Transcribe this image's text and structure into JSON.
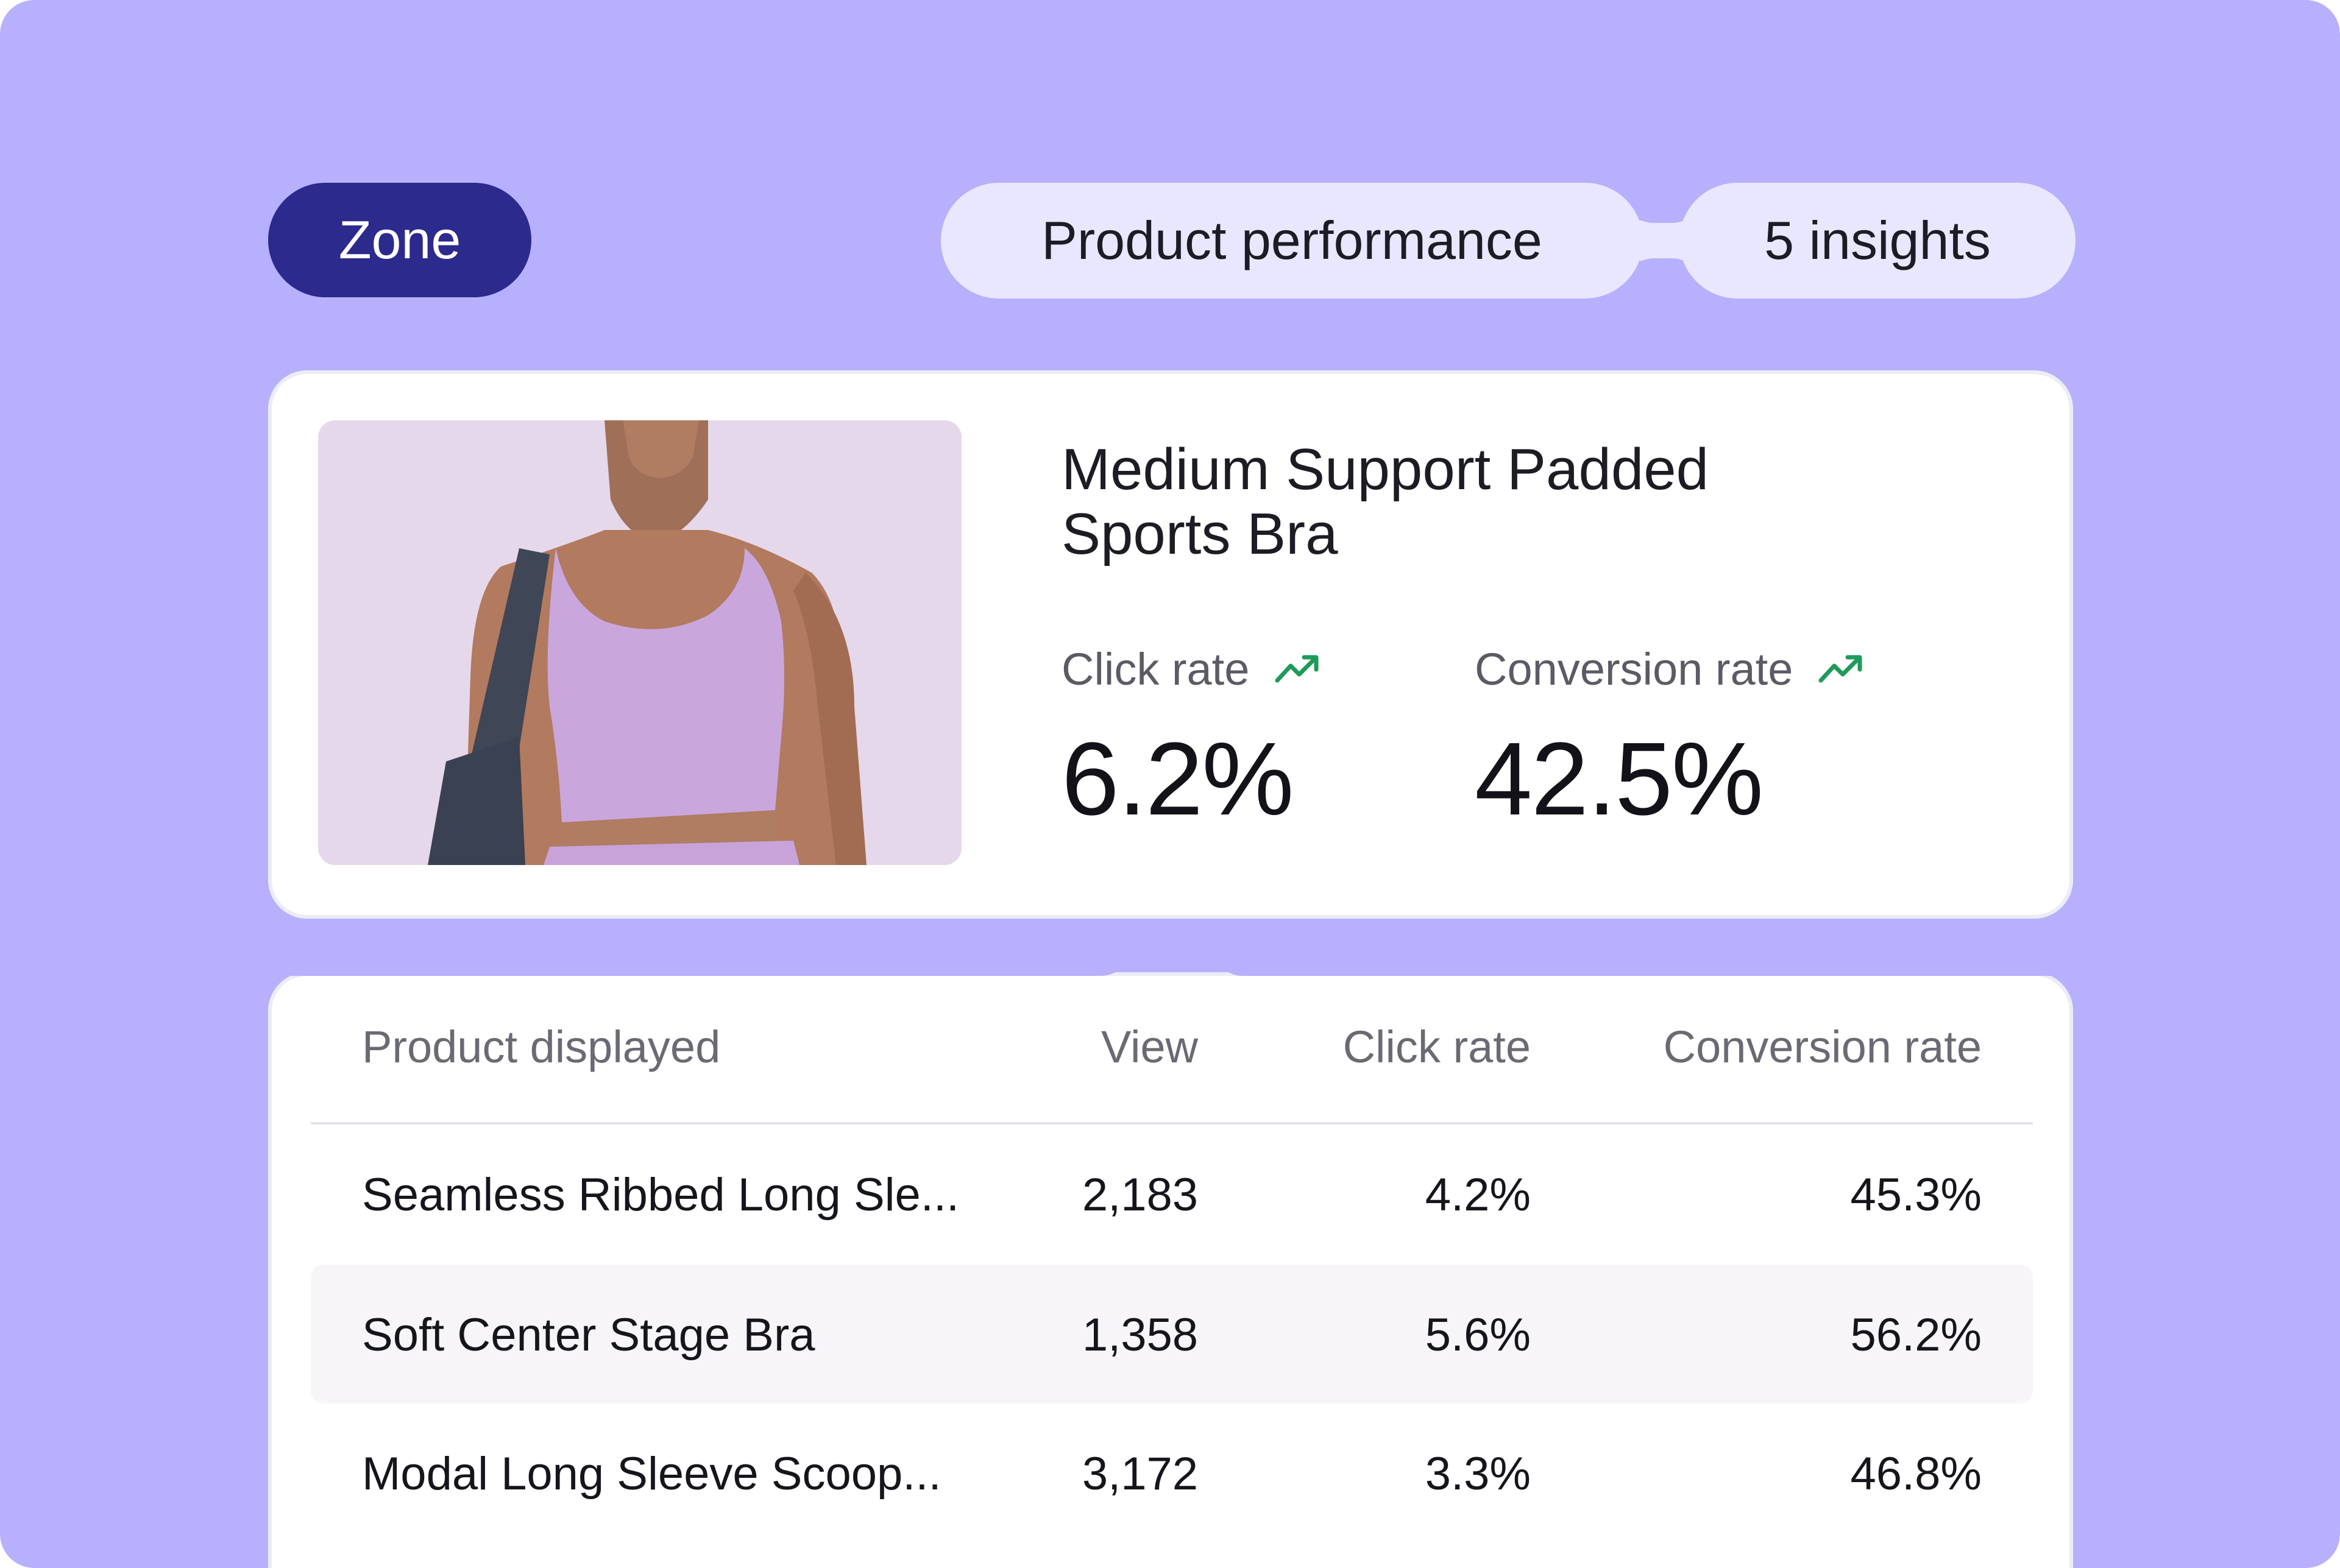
{
  "header": {
    "zone_label": "Zone",
    "section_label": "Product performance",
    "insights_label": "5 insights"
  },
  "product": {
    "title": "Medium Support Padded Sports Bra",
    "image": "woman-in-lavender-sports-top-photo",
    "metrics": [
      {
        "label": "Click rate",
        "value": "6.2%",
        "trend": "up",
        "trend_icon": "trend-up-icon"
      },
      {
        "label": "Conversion rate",
        "value": "42.5%",
        "trend": "up",
        "trend_icon": "trend-up-icon"
      }
    ]
  },
  "table": {
    "columns": [
      "Product displayed",
      "View",
      "Click rate",
      "Conversion rate"
    ],
    "rows": [
      {
        "name": "Seamless Ribbed Long Sle...",
        "view": "2,183",
        "click": "4.2%",
        "conversion": "45.3%"
      },
      {
        "name": "Soft Center Stage Bra",
        "view": "1,358",
        "click": "5.6%",
        "conversion": "56.2%"
      },
      {
        "name": "Modal Long Sleeve Scoop...",
        "view": "3,172",
        "click": "3.3%",
        "conversion": "46.8%"
      }
    ]
  },
  "colors": {
    "background": "#b7b0fd",
    "zone_pill": "#2c2a8c",
    "light_pill": "#e9e7ff",
    "trend_up": "#1e9b5a"
  }
}
